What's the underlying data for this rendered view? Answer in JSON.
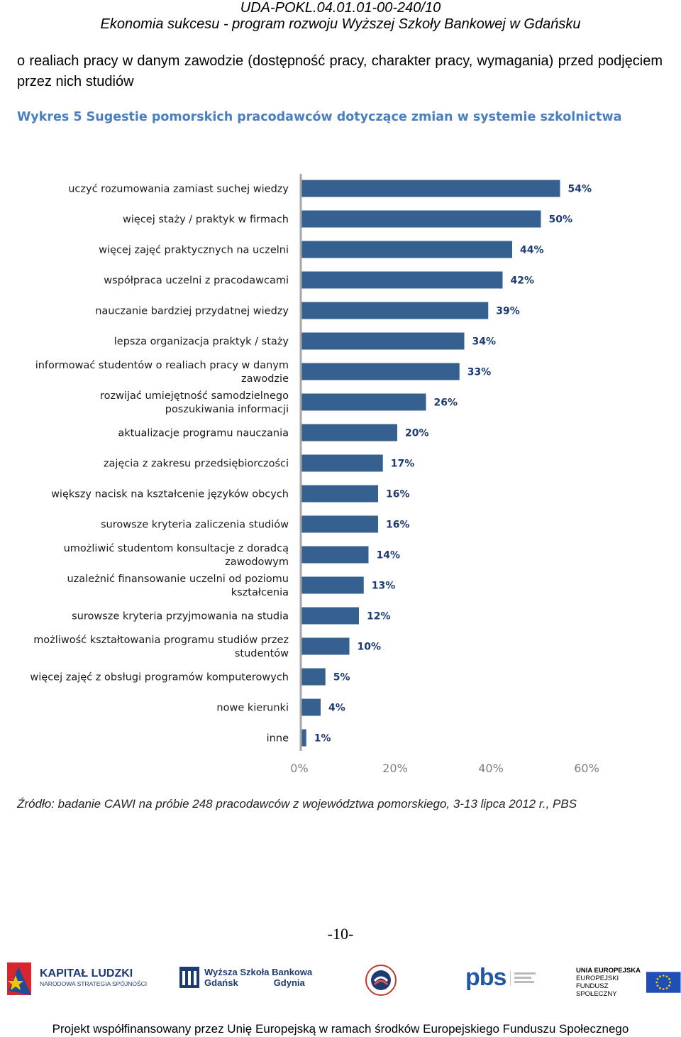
{
  "header": {
    "code": "UDA-POKL.04.01.01-00-240/10",
    "project": "Ekonomia sukcesu - program rozwoju Wyższej Szkoły Bankowej w Gdańsku"
  },
  "intro_text": "o realiach pracy w danym zawodzie (dostępność pracy, charakter pracy, wymagania) przed podjęciem przez nich studiów",
  "figure_caption": "Wykres 5 Sugestie pomorskich pracodawców dotyczące zmian w systemie szkolnictwa",
  "chart_data": {
    "type": "bar",
    "orientation": "horizontal",
    "categories": [
      "uczyć rozumowania zamiast suchej wiedzy",
      "więcej staży / praktyk w firmach",
      "więcej zajęć praktycznych na uczelni",
      "współpraca uczelni z pracodawcami",
      "nauczanie bardziej przydatnej wiedzy",
      "lepsza organizacja praktyk / staży",
      "informować studentów o realiach pracy w danym zawodzie",
      "rozwijać umiejętność samodzielnego poszukiwania informacji",
      "aktualizacje programu nauczania",
      "zajęcia z zakresu przedsiębiorczości",
      "większy nacisk na kształcenie języków obcych",
      "surowsze kryteria zaliczenia studiów",
      "umożliwić studentom konsultacje z doradcą zawodowym",
      "uzależnić finansowanie uczelni od poziomu kształcenia",
      "surowsze kryteria przyjmowania na studia",
      "możliwość kształtowania programu studiów przez studentów",
      "więcej zajęć z obsługi programów komputerowych",
      "nowe kierunki",
      "inne"
    ],
    "values": [
      54,
      50,
      44,
      42,
      39,
      34,
      33,
      26,
      20,
      17,
      16,
      16,
      14,
      13,
      12,
      10,
      5,
      4,
      1
    ],
    "value_labels": [
      "54%",
      "50%",
      "44%",
      "42%",
      "39%",
      "34%",
      "33%",
      "26%",
      "20%",
      "17%",
      "16%",
      "16%",
      "14%",
      "13%",
      "12%",
      "10%",
      "5%",
      "4%",
      "1%"
    ],
    "xlim": [
      0,
      60
    ],
    "xticks": [
      "0%",
      "20%",
      "40%",
      "60%"
    ],
    "bar_color": "#36608f",
    "grid": false
  },
  "source_text": "Źródło: badanie CAWI na próbie 248 pracodawców z województwa pomorskiego, 3-13 lipca 2012 r., PBS",
  "page_number": "-10-",
  "logos": {
    "kapital_title": "KAPITAŁ LUDZKI",
    "kapital_sub": "NARODOWA STRATEGIA SPÓJNOŚCI",
    "wsb_line1": "Wyższa Szkoła Bankowa",
    "wsb_city1": "Gdańsk",
    "wsb_city2": "Gdynia",
    "pbs_name": "pbs",
    "ue_line1": "UNIA EUROPEJSKA",
    "ue_line2": "EUROPEJSKI",
    "ue_line3": "FUNDUSZ SPOŁECZNY"
  },
  "footer_text": "Projekt współfinansowany przez Unię Europejską w ramach środków Europejskiego Funduszu Społecznego"
}
